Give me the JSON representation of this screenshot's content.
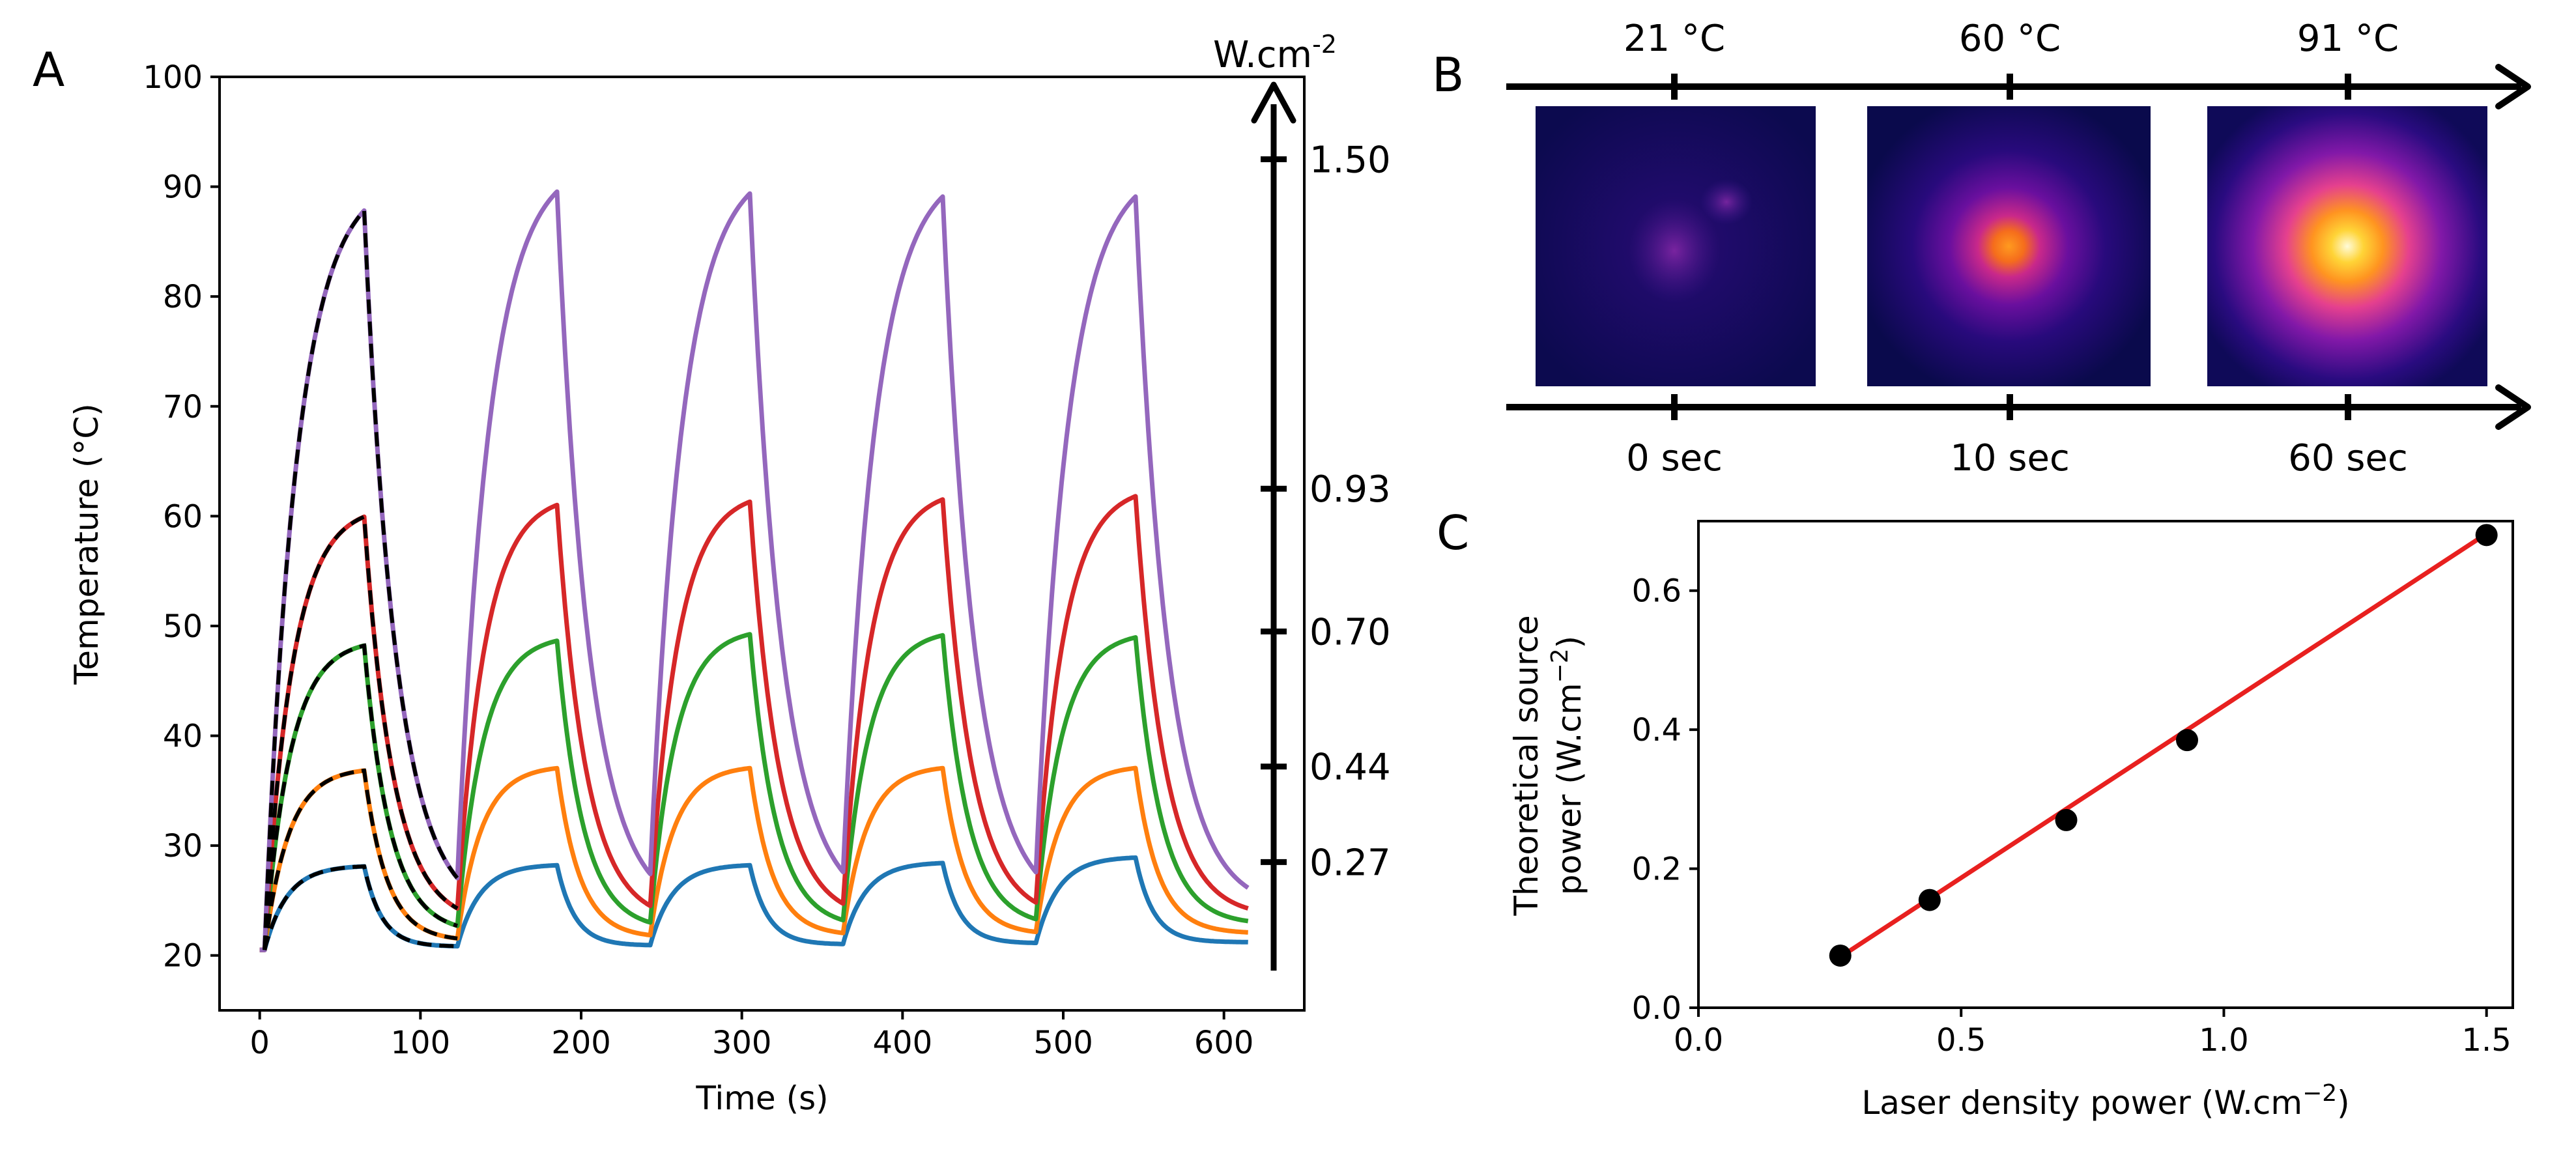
{
  "colors": {
    "c027": "#1f77b4",
    "c044": "#ff7f0e",
    "c070": "#2ca02c",
    "c093": "#d62728",
    "c150": "#9467bd",
    "fit": "#000000",
    "regression": "#e8201f"
  },
  "chart_data": [
    {
      "panel": "A",
      "type": "line",
      "xlabel": "Time (s)",
      "ylabel": "Temperature (°C)",
      "xlim": [
        -25,
        650
      ],
      "ylim": [
        15,
        100
      ],
      "xticks": [
        0,
        100,
        200,
        300,
        400,
        500,
        600
      ],
      "yticks": [
        20,
        30,
        40,
        50,
        60,
        70,
        80,
        90,
        100
      ],
      "cycle": {
        "on_start": [
          3,
          123,
          243,
          363,
          483
        ],
        "on_end": [
          65,
          185,
          305,
          425,
          545
        ],
        "end": 615
      },
      "series": [
        {
          "name": "0.27 W.cm-2",
          "color_key": "c027",
          "plateaus": [
            28.2,
            28.3,
            28.3,
            28.5,
            29.0
          ],
          "floors": [
            20.8,
            20.9,
            21.0,
            21.1,
            21.2
          ],
          "tau_heat": 14,
          "tau_cool": 11
        },
        {
          "name": "0.44 W.cm-2",
          "color_key": "c044",
          "plateaus": [
            37.1,
            37.3,
            37.3,
            37.3,
            37.3
          ],
          "floors": [
            21.3,
            21.6,
            21.8,
            21.9,
            22.0
          ],
          "tau_heat": 15,
          "tau_cool": 14
        },
        {
          "name": "0.70 W.cm-2",
          "color_key": "c070",
          "plateaus": [
            48.8,
            49.2,
            49.8,
            49.7,
            49.5
          ],
          "floors": [
            22.0,
            22.3,
            22.5,
            22.6,
            22.8
          ],
          "tau_heat": 16,
          "tau_cool": 16
        },
        {
          "name": "0.93 W.cm-2",
          "color_key": "c093",
          "plateaus": [
            61.0,
            62.0,
            62.3,
            62.5,
            62.8
          ],
          "floors": [
            22.8,
            23.0,
            23.2,
            23.3,
            23.5
          ],
          "tau_heat": 17,
          "tau_cool": 18
        },
        {
          "name": "1.50 W.cm-2",
          "color_key": "c150",
          "plateaus": [
            91.0,
            92.5,
            92.3,
            92.0,
            92.0
          ],
          "floors": [
            23.5,
            23.8,
            24.0,
            24.0,
            24.2
          ],
          "tau_heat": 20,
          "tau_cool": 20
        }
      ],
      "fit_style": "dashed black model fits over first cycle",
      "power_axis": {
        "unit_label": "W.cm",
        "unit_exponent": "-2",
        "ticks": [
          {
            "label": "1.50",
            "temperature": 92.5
          },
          {
            "label": "0.93",
            "temperature": 62.5
          },
          {
            "label": "0.70",
            "temperature": 49.5
          },
          {
            "label": "0.44",
            "temperature": 37.2
          },
          {
            "label": "0.27",
            "temperature": 28.5
          }
        ]
      }
    },
    {
      "panel": "B",
      "type": "image-sequence",
      "temperatures": [
        "21 °C",
        "60 °C",
        "91 °C"
      ],
      "times": [
        "0 sec",
        "10 sec",
        "60 sec"
      ],
      "colormap": "inferno-like thermal camera"
    },
    {
      "panel": "C",
      "type": "scatter",
      "xlabel": "Laser density power (W.cm",
      "xlabel_exponent": "−2",
      "xlabel_close": ")",
      "ylabel_line1": "Theoretical source",
      "ylabel_line2": "power (W.cm",
      "ylabel_exponent": "−2",
      "ylabel_close": ")",
      "xlim": [
        0.0,
        1.55
      ],
      "ylim": [
        0.0,
        0.7
      ],
      "xticks": [
        "0.0",
        "0.5",
        "1.0",
        "1.5"
      ],
      "yticks": [
        "0.0",
        "0.2",
        "0.4",
        "0.6"
      ],
      "x": [
        0.27,
        0.44,
        0.7,
        0.93,
        1.5
      ],
      "y": [
        0.075,
        0.155,
        0.27,
        0.385,
        0.68
      ],
      "fit": {
        "type": "linear",
        "x": [
          0.27,
          1.5
        ],
        "y": [
          0.073,
          0.682
        ]
      }
    }
  ],
  "labels": {
    "panel_a": "A",
    "panel_b": "B",
    "panel_c": "C"
  }
}
